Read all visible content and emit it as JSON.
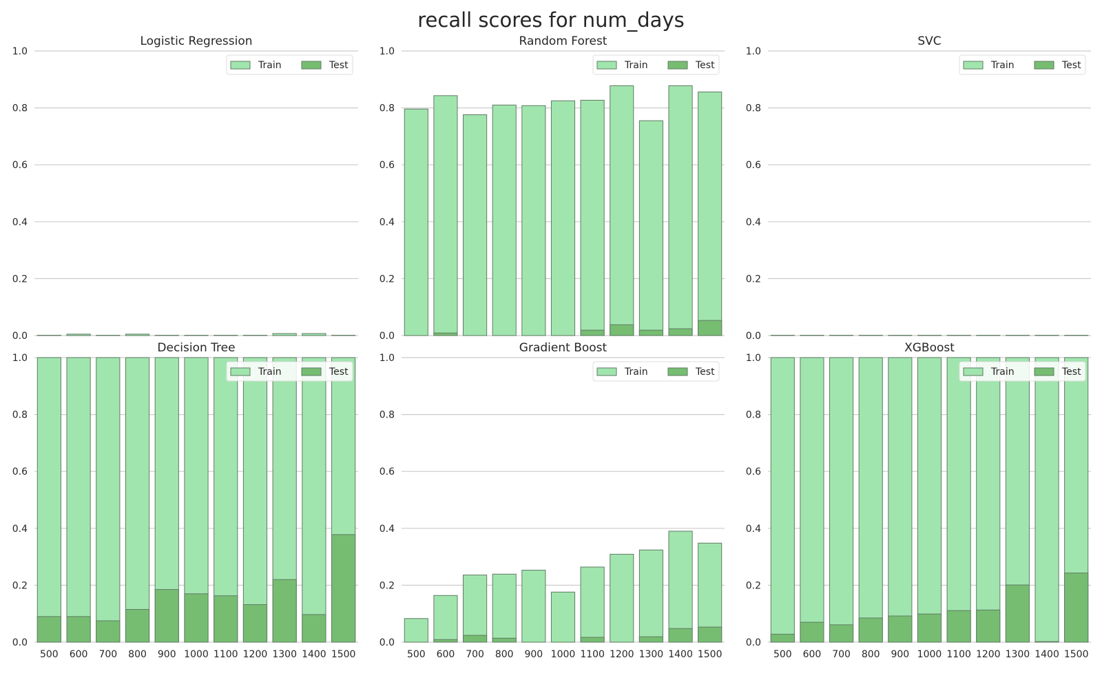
{
  "suptitle": "recall scores for num_days",
  "colors": {
    "train": "#a1e5ae",
    "test": "#76bd72",
    "edge": "#5f7a63",
    "grid": "#cccccc"
  },
  "chart_data": [
    {
      "type": "bar",
      "title": "Logistic Regression",
      "categories": [
        "500",
        "600",
        "700",
        "800",
        "900",
        "1000",
        "1100",
        "1200",
        "1300",
        "1400",
        "1500"
      ],
      "series": [
        {
          "name": "Train",
          "values": [
            0.001,
            0.005,
            0.001,
            0.005,
            0.001,
            0.001,
            0.001,
            0.001,
            0.007,
            0.007,
            0.001
          ]
        },
        {
          "name": "Test",
          "values": [
            0,
            0,
            0,
            0,
            0,
            0,
            0,
            0,
            0,
            0,
            0
          ]
        }
      ],
      "ylim": [
        0,
        1.0
      ],
      "yticks": [
        "0.0",
        "0.2",
        "0.4",
        "0.6",
        "0.8",
        "1.0"
      ],
      "show_xticks": false,
      "grid": true,
      "legend": "top-right"
    },
    {
      "type": "bar",
      "title": "Random Forest",
      "categories": [
        "500",
        "600",
        "700",
        "800",
        "900",
        "1000",
        "1100",
        "1200",
        "1300",
        "1400",
        "1500"
      ],
      "series": [
        {
          "name": "Train",
          "values": [
            0.796,
            0.843,
            0.776,
            0.81,
            0.808,
            0.825,
            0.827,
            0.878,
            0.755,
            0.878,
            0.856
          ]
        },
        {
          "name": "Test",
          "values": [
            0,
            0.009,
            0,
            0,
            0,
            0,
            0.019,
            0.038,
            0.019,
            0.024,
            0.053
          ]
        }
      ],
      "ylim": [
        0,
        1.0
      ],
      "yticks": [
        "0.0",
        "0.2",
        "0.4",
        "0.6",
        "0.8",
        "1.0"
      ],
      "show_xticks": false,
      "grid": true,
      "legend": "top-right"
    },
    {
      "type": "bar",
      "title": "SVC",
      "categories": [
        "500",
        "600",
        "700",
        "800",
        "900",
        "1000",
        "1100",
        "1200",
        "1300",
        "1400",
        "1500"
      ],
      "series": [
        {
          "name": "Train",
          "values": [
            0.001,
            0.001,
            0.001,
            0.001,
            0.001,
            0.001,
            0.001,
            0.001,
            0.001,
            0.001,
            0.001
          ]
        },
        {
          "name": "Test",
          "values": [
            0,
            0,
            0,
            0,
            0,
            0,
            0,
            0,
            0,
            0,
            0
          ]
        }
      ],
      "ylim": [
        0,
        1.0
      ],
      "yticks": [
        "0.0",
        "0.2",
        "0.4",
        "0.6",
        "0.8",
        "1.0"
      ],
      "show_xticks": false,
      "grid": true,
      "legend": "top-right"
    },
    {
      "type": "bar",
      "title": "Decision Tree",
      "categories": [
        "500",
        "600",
        "700",
        "800",
        "900",
        "1000",
        "1100",
        "1200",
        "1300",
        "1400",
        "1500"
      ],
      "series": [
        {
          "name": "Train",
          "values": [
            1.0,
            1.0,
            1.0,
            1.0,
            1.0,
            1.0,
            1.0,
            1.0,
            1.0,
            1.0,
            1.0
          ]
        },
        {
          "name": "Test",
          "values": [
            0.09,
            0.09,
            0.075,
            0.115,
            0.185,
            0.17,
            0.163,
            0.132,
            0.22,
            0.097,
            0.378
          ]
        }
      ],
      "ylim": [
        0,
        1.0
      ],
      "yticks": [
        "0.0",
        "0.2",
        "0.4",
        "0.6",
        "0.8",
        "1.0"
      ],
      "show_xticks": true,
      "grid": true,
      "legend": "top-right"
    },
    {
      "type": "bar",
      "title": "Gradient Boost",
      "categories": [
        "500",
        "600",
        "700",
        "800",
        "900",
        "1000",
        "1100",
        "1200",
        "1300",
        "1400",
        "1500"
      ],
      "series": [
        {
          "name": "Train",
          "values": [
            0.083,
            0.164,
            0.236,
            0.239,
            0.253,
            0.176,
            0.264,
            0.309,
            0.324,
            0.39,
            0.348
          ]
        },
        {
          "name": "Test",
          "values": [
            0,
            0.009,
            0.024,
            0.014,
            0,
            0,
            0.017,
            0,
            0.019,
            0.048,
            0.053
          ]
        }
      ],
      "ylim": [
        0,
        1.0
      ],
      "yticks": [
        "0.0",
        "0.2",
        "0.4",
        "0.6",
        "0.8",
        "1.0"
      ],
      "show_xticks": true,
      "grid": true,
      "legend": "top-right"
    },
    {
      "type": "bar",
      "title": "XGBoost",
      "categories": [
        "500",
        "600",
        "700",
        "800",
        "900",
        "1000",
        "1100",
        "1200",
        "1300",
        "1400",
        "1500"
      ],
      "series": [
        {
          "name": "Train",
          "values": [
            1.0,
            1.0,
            1.0,
            1.0,
            1.0,
            1.0,
            1.0,
            1.0,
            1.0,
            1.0,
            1.0
          ]
        },
        {
          "name": "Test",
          "values": [
            0.028,
            0.07,
            0.061,
            0.085,
            0.092,
            0.099,
            0.111,
            0.113,
            0.201,
            0.002,
            0.243
          ]
        }
      ],
      "ylim": [
        0,
        1.0
      ],
      "yticks": [
        "0.0",
        "0.2",
        "0.4",
        "0.6",
        "0.8",
        "1.0"
      ],
      "show_xticks": true,
      "grid": true,
      "legend": "top-right"
    }
  ]
}
